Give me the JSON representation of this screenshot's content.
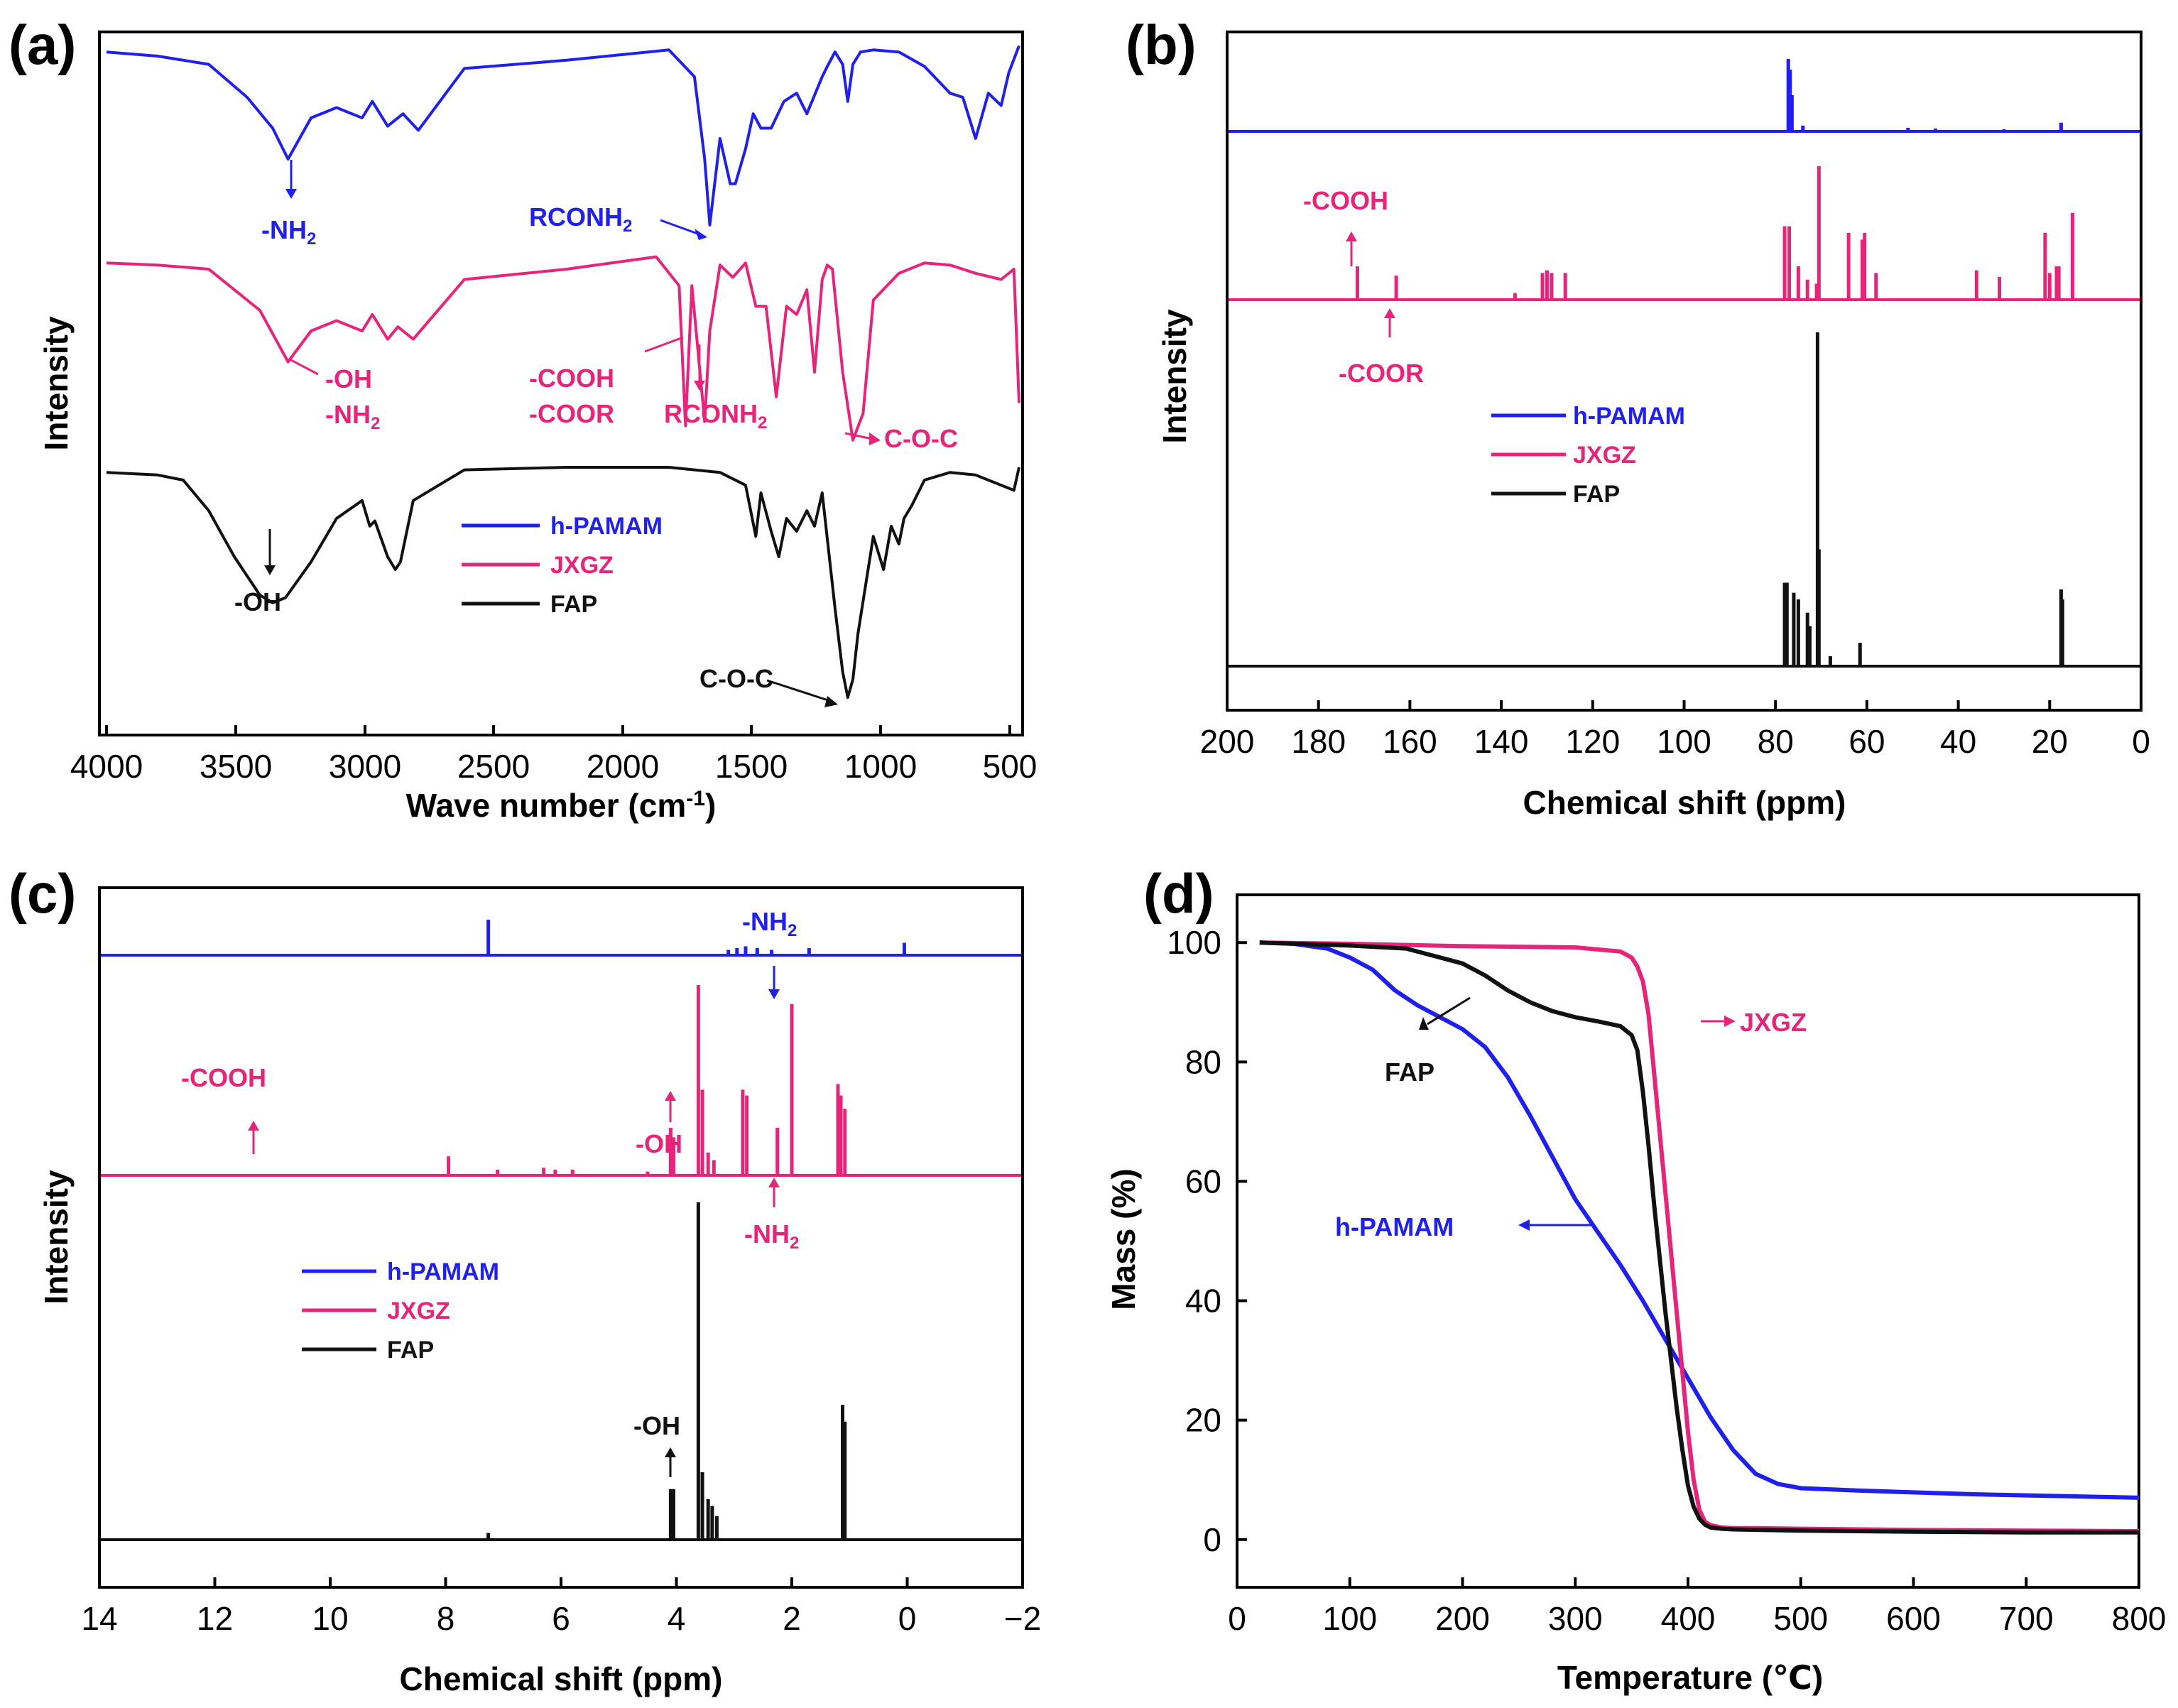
{
  "colors": {
    "h_pamam": "#1f1ff0",
    "jxgz": "#e8237a",
    "fap": "#111111"
  },
  "chart_data": [
    {
      "panel": "(a)",
      "type": "line",
      "xlabel": "Wave number (cm",
      "xlabel_sup": "-1",
      "xlabel_end": ")",
      "ylabel": "Intensity",
      "xlim": [
        4000,
        430
      ],
      "xticks": [
        "4000",
        "3500",
        "3000",
        "2500",
        "2000",
        "1500",
        "1000",
        "500"
      ],
      "legend": [
        "h-PAMAM",
        "JXGZ",
        "FAP"
      ],
      "annotations": [
        {
          "text": "-NH",
          "sub": "2",
          "series": "h-PAMAM",
          "x": 3290
        },
        {
          "text": "RCONH",
          "sub": "2",
          "series": "h-PAMAM",
          "x": 1640
        },
        {
          "text": "-OH",
          "series": "JXGZ",
          "x": 3290
        },
        {
          "text": "-NH",
          "sub": "2",
          "series": "JXGZ",
          "x": 3290
        },
        {
          "text": "-COOH",
          "series": "JXGZ",
          "x": 1735
        },
        {
          "text": "-COOR",
          "series": "JXGZ",
          "x": 1735
        },
        {
          "text": "RCONH",
          "sub": "2",
          "series": "JXGZ",
          "x": 1650
        },
        {
          "text": "C-O-C",
          "series": "JXGZ",
          "x": 1080
        },
        {
          "text": "-OH",
          "series": "FAP",
          "x": 3350
        },
        {
          "text": "C-O-C",
          "series": "FAP",
          "x": 1100
        }
      ],
      "series": [
        {
          "name": "h-PAMAM",
          "x": [
            4000,
            3800,
            3600,
            3450,
            3350,
            3290,
            3200,
            3100,
            3000,
            2960,
            2900,
            2840,
            2780,
            2600,
            2200,
            1800,
            1700,
            1660,
            1640,
            1600,
            1560,
            1540,
            1500,
            1470,
            1440,
            1400,
            1350,
            1300,
            1260,
            1200,
            1180,
            1150,
            1120,
            1100,
            1080,
            1050,
            1000,
            900,
            800,
            700,
            650,
            600,
            550,
            500,
            470,
            430
          ],
          "y": [
            0.92,
            0.9,
            0.86,
            0.7,
            0.55,
            0.4,
            0.6,
            0.65,
            0.6,
            0.68,
            0.56,
            0.62,
            0.54,
            0.84,
            0.88,
            0.93,
            0.8,
            0.4,
            0.08,
            0.5,
            0.28,
            0.28,
            0.45,
            0.62,
            0.55,
            0.55,
            0.68,
            0.72,
            0.62,
            0.8,
            0.85,
            0.92,
            0.86,
            0.68,
            0.86,
            0.92,
            0.93,
            0.92,
            0.85,
            0.72,
            0.7,
            0.5,
            0.72,
            0.66,
            0.82,
            0.95
          ]
        },
        {
          "name": "JXGZ",
          "x": [
            4000,
            3800,
            3600,
            3400,
            3290,
            3200,
            3100,
            3000,
            2960,
            2900,
            2860,
            2800,
            2600,
            2200,
            1850,
            1760,
            1735,
            1710,
            1680,
            1660,
            1640,
            1600,
            1550,
            1500,
            1460,
            1420,
            1380,
            1340,
            1300,
            1260,
            1230,
            1200,
            1180,
            1160,
            1120,
            1080,
            1040,
            1000,
            900,
            800,
            700,
            600,
            500,
            450,
            430
          ],
          "y": [
            0.93,
            0.92,
            0.9,
            0.7,
            0.45,
            0.6,
            0.65,
            0.6,
            0.68,
            0.56,
            0.62,
            0.56,
            0.85,
            0.9,
            0.96,
            0.82,
            0.14,
            0.82,
            0.42,
            0.16,
            0.6,
            0.92,
            0.86,
            0.93,
            0.72,
            0.72,
            0.28,
            0.72,
            0.68,
            0.8,
            0.4,
            0.85,
            0.92,
            0.9,
            0.4,
            0.07,
            0.2,
            0.75,
            0.88,
            0.93,
            0.92,
            0.88,
            0.85,
            0.9,
            0.25
          ]
        },
        {
          "name": "FAP",
          "x": [
            4000,
            3800,
            3700,
            3600,
            3500,
            3400,
            3350,
            3300,
            3200,
            3100,
            3000,
            2970,
            2950,
            2900,
            2870,
            2850,
            2800,
            2600,
            2200,
            1800,
            1600,
            1500,
            1460,
            1440,
            1400,
            1370,
            1340,
            1300,
            1260,
            1230,
            1200,
            1150,
            1120,
            1100,
            1080,
            1060,
            1000,
            960,
            930,
            900,
            880,
            850,
            800,
            700,
            600,
            500,
            450,
            430
          ],
          "y": [
            0.93,
            0.92,
            0.9,
            0.78,
            0.6,
            0.45,
            0.42,
            0.44,
            0.58,
            0.75,
            0.82,
            0.72,
            0.74,
            0.6,
            0.55,
            0.58,
            0.82,
            0.94,
            0.95,
            0.95,
            0.93,
            0.88,
            0.68,
            0.85,
            0.7,
            0.6,
            0.75,
            0.7,
            0.78,
            0.72,
            0.85,
            0.4,
            0.15,
            0.05,
            0.12,
            0.3,
            0.68,
            0.55,
            0.72,
            0.65,
            0.75,
            0.8,
            0.9,
            0.93,
            0.92,
            0.88,
            0.86,
            0.95
          ]
        }
      ]
    },
    {
      "panel": "(b)",
      "type": "line",
      "xlabel": "Chemical shift (ppm)",
      "ylabel": "Intensity",
      "xlim": [
        200,
        0
      ],
      "xticks": [
        "200",
        "180",
        "160",
        "140",
        "120",
        "100",
        "80",
        "60",
        "40",
        "20",
        "0"
      ],
      "legend": [
        "h-PAMAM",
        "JXGZ",
        "FAP"
      ],
      "annotations": [
        {
          "text": "-COOH",
          "series": "JXGZ",
          "x": 171.5
        },
        {
          "text": "-COOR",
          "series": "JXGZ",
          "x": 163
        }
      ],
      "series": [
        {
          "name": "h-PAMAM",
          "peaks": [
            [
              77.2,
              1.0
            ],
            [
              76.8,
              0.85
            ],
            [
              76.4,
              0.5
            ],
            [
              74,
              0.08
            ],
            [
              51,
              0.05
            ],
            [
              45,
              0.04
            ],
            [
              30,
              0.03
            ],
            [
              17.5,
              0.12
            ]
          ]
        },
        {
          "name": "JXGZ",
          "peaks": [
            [
              171.5,
              0.25
            ],
            [
              163,
              0.18
            ],
            [
              137,
              0.05
            ],
            [
              131,
              0.2
            ],
            [
              130,
              0.22
            ],
            [
              129,
              0.2
            ],
            [
              126,
              0.2
            ],
            [
              78,
              0.55
            ],
            [
              77,
              0.55
            ],
            [
              75,
              0.25
            ],
            [
              73,
              0.15
            ],
            [
              71,
              0.12
            ],
            [
              70.5,
              1.0
            ],
            [
              64,
              0.5
            ],
            [
              61,
              0.45
            ],
            [
              60.5,
              0.5
            ],
            [
              58,
              0.2
            ],
            [
              36,
              0.22
            ],
            [
              31,
              0.17
            ],
            [
              21,
              0.5
            ],
            [
              20,
              0.2
            ],
            [
              18.5,
              0.25
            ],
            [
              18,
              0.25
            ],
            [
              15,
              0.65
            ]
          ]
        },
        {
          "name": "FAP",
          "peaks": [
            [
              78,
              0.25
            ],
            [
              77.5,
              0.25
            ],
            [
              76,
              0.22
            ],
            [
              75,
              0.2
            ],
            [
              73,
              0.16
            ],
            [
              72.5,
              0.12
            ],
            [
              70.8,
              1.0
            ],
            [
              70.5,
              0.35
            ],
            [
              68,
              0.03
            ],
            [
              61.5,
              0.07
            ],
            [
              17.5,
              0.23
            ],
            [
              17.2,
              0.2
            ]
          ]
        }
      ]
    },
    {
      "panel": "(c)",
      "type": "line",
      "xlabel": "Chemical shift (ppm)",
      "ylabel": "Intensity",
      "xlim": [
        14,
        -2
      ],
      "xticks": [
        "14",
        "12",
        "10",
        "8",
        "6",
        "4",
        "2",
        "0",
        "−2"
      ],
      "legend": [
        "h-PAMAM",
        "JXGZ",
        "FAP"
      ],
      "annotations": [
        {
          "text": "-NH",
          "sub": "2",
          "series": "h-PAMAM",
          "x": 2.2
        },
        {
          "text": "-COOH",
          "series": "JXGZ",
          "x": 11.3
        },
        {
          "text": "-OH",
          "series": "JXGZ",
          "x": 4.1
        },
        {
          "text": "-NH",
          "sub": "2",
          "series": "JXGZ",
          "x": 2.2
        },
        {
          "text": "-OH",
          "series": "FAP",
          "x": 4.1
        }
      ],
      "series": [
        {
          "name": "h-PAMAM",
          "peaks": [
            [
              7.26,
              1.0
            ],
            [
              3.1,
              0.15
            ],
            [
              2.95,
              0.2
            ],
            [
              2.8,
              0.25
            ],
            [
              2.6,
              0.2
            ],
            [
              2.35,
              0.15
            ],
            [
              1.7,
              0.2
            ],
            [
              0.05,
              0.35
            ]
          ]
        },
        {
          "name": "JXGZ",
          "peaks": [
            [
              7.95,
              0.1
            ],
            [
              7.1,
              0.03
            ],
            [
              6.3,
              0.04
            ],
            [
              6.1,
              0.03
            ],
            [
              5.8,
              0.03
            ],
            [
              4.5,
              0.02
            ],
            [
              4.1,
              0.25
            ],
            [
              4.05,
              0.2
            ],
            [
              3.62,
              1.0
            ],
            [
              3.55,
              0.45
            ],
            [
              3.45,
              0.12
            ],
            [
              3.35,
              0.08
            ],
            [
              2.85,
              0.45
            ],
            [
              2.78,
              0.42
            ],
            [
              2.25,
              0.25
            ],
            [
              2.0,
              0.9
            ],
            [
              1.2,
              0.48
            ],
            [
              1.15,
              0.42
            ],
            [
              1.08,
              0.35
            ]
          ]
        },
        {
          "name": "FAP",
          "peaks": [
            [
              4.1,
              0.15
            ],
            [
              4.05,
              0.15
            ],
            [
              3.62,
              1.0
            ],
            [
              3.55,
              0.2
            ],
            [
              3.45,
              0.12
            ],
            [
              3.38,
              0.1
            ],
            [
              3.3,
              0.07
            ],
            [
              1.12,
              0.4
            ],
            [
              1.08,
              0.35
            ],
            [
              7.26,
              0.02
            ]
          ]
        }
      ]
    },
    {
      "panel": "(d)",
      "type": "line",
      "xlabel": "Temperature (℃)",
      "ylabel": "Mass (%)",
      "xlim": [
        0,
        800
      ],
      "ylim": [
        -8,
        108
      ],
      "xticks": [
        "0",
        "100",
        "200",
        "300",
        "400",
        "500",
        "600",
        "700",
        "800"
      ],
      "yticks": [
        "0",
        "20",
        "40",
        "60",
        "80",
        "100"
      ],
      "annotations": [
        {
          "text": "JXGZ",
          "series": "JXGZ"
        },
        {
          "text": "FAP",
          "series": "FAP"
        },
        {
          "text": "h-PAMAM",
          "series": "h-PAMAM"
        }
      ],
      "series": [
        {
          "name": "h-PAMAM",
          "x": [
            20,
            50,
            80,
            100,
            120,
            140,
            160,
            180,
            200,
            220,
            240,
            260,
            280,
            300,
            320,
            340,
            360,
            380,
            400,
            420,
            440,
            460,
            480,
            500,
            550,
            600,
            650,
            700,
            750,
            800
          ],
          "y": [
            100,
            99.8,
            99,
            97.5,
            95.5,
            92,
            89.5,
            87.5,
            85.5,
            82.5,
            77.5,
            71,
            64,
            57,
            51.5,
            46,
            40,
            33.5,
            27,
            20.5,
            15,
            11,
            9.3,
            8.6,
            8.2,
            7.9,
            7.6,
            7.4,
            7.2,
            7
          ]
        },
        {
          "name": "JXGZ",
          "x": [
            20,
            100,
            200,
            300,
            340,
            350,
            355,
            360,
            365,
            370,
            375,
            380,
            385,
            390,
            395,
            400,
            405,
            410,
            415,
            420,
            430,
            440,
            460,
            500,
            600,
            700,
            800
          ],
          "y": [
            100,
            99.8,
            99.4,
            99.2,
            98.5,
            97.5,
            96,
            93.5,
            88,
            78,
            68,
            58,
            48,
            38,
            28,
            18,
            10,
            5,
            3,
            2.4,
            2,
            1.9,
            1.9,
            1.8,
            1.6,
            1.5,
            1.4
          ]
        },
        {
          "name": "FAP",
          "x": [
            20,
            100,
            150,
            200,
            220,
            240,
            260,
            280,
            300,
            320,
            340,
            350,
            355,
            360,
            365,
            370,
            375,
            380,
            385,
            390,
            395,
            400,
            405,
            410,
            415,
            420,
            430,
            440,
            500,
            600,
            700,
            800
          ],
          "y": [
            100,
            99.5,
            99,
            96.5,
            94.5,
            92,
            90,
            88.5,
            87.5,
            86.8,
            86,
            84.5,
            82,
            75,
            66,
            56,
            47,
            38,
            30,
            22,
            15,
            9,
            5.5,
            3.5,
            2.5,
            2,
            1.8,
            1.7,
            1.5,
            1.3,
            1.2,
            1.2
          ]
        }
      ]
    }
  ]
}
